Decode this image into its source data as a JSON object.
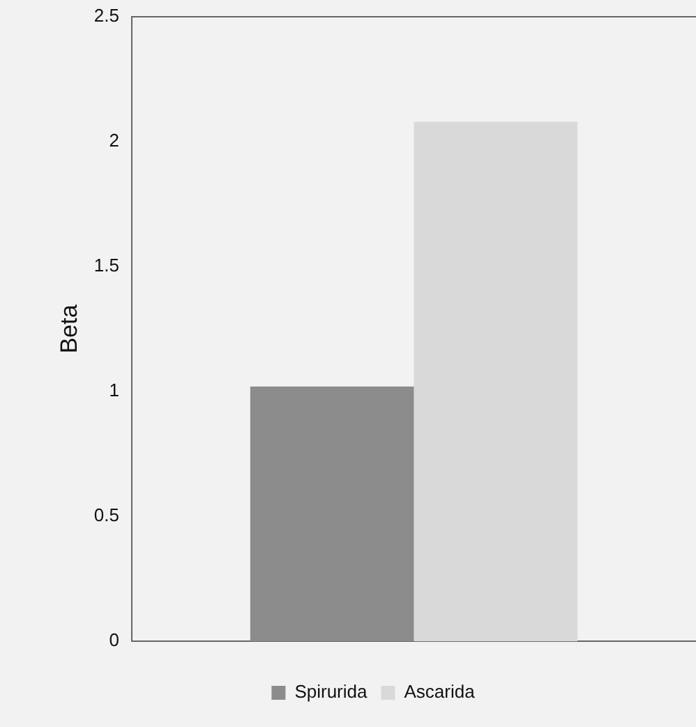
{
  "chart_data": {
    "type": "bar",
    "ylabel": "Beta",
    "categories": [
      null
    ],
    "series": [
      {
        "name": "Spirurida",
        "color": "#8c8c8c",
        "values": [
          1.02
        ]
      },
      {
        "name": "Ascarida",
        "color": "#d9d9d9",
        "values": [
          2.08
        ]
      }
    ],
    "ylim": [
      0,
      2.5
    ],
    "yticks": [
      0,
      0.5,
      1,
      1.5,
      2,
      2.5
    ],
    "grid": false,
    "legend": "bottom"
  }
}
